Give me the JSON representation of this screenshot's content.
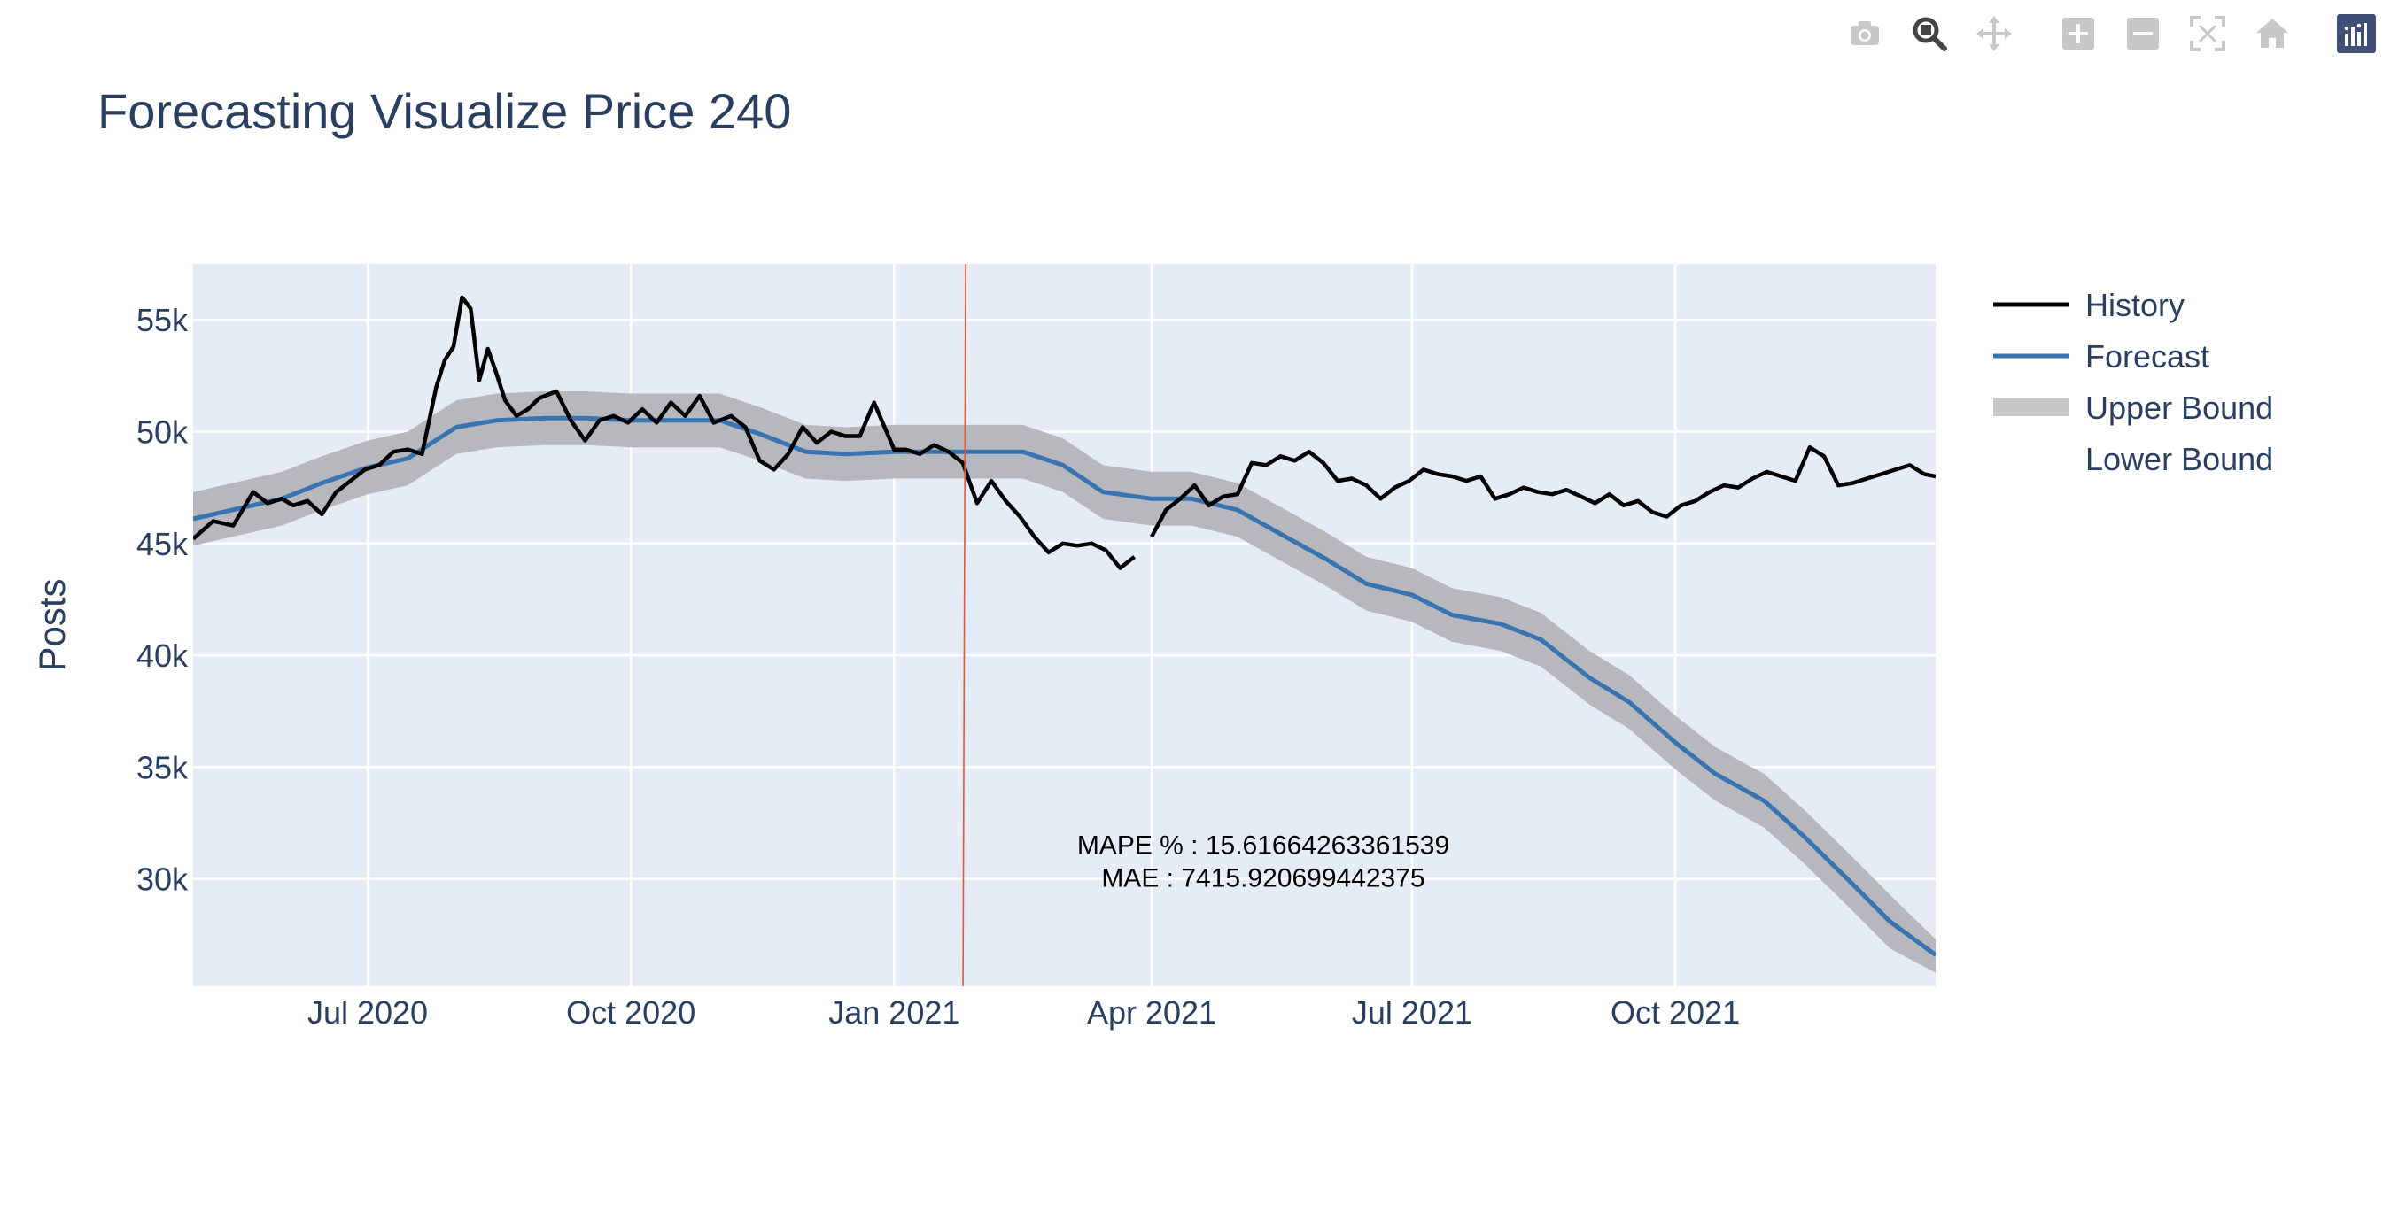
{
  "modebar": {
    "buttons": [
      {
        "name": "camera-icon",
        "label": "Download plot as a png",
        "active": false
      },
      {
        "name": "zoom-icon",
        "label": "Zoom",
        "active": true
      },
      {
        "name": "pan-icon",
        "label": "Pan",
        "active": false
      },
      {
        "name": "zoom-in-icon",
        "label": "Zoom in",
        "active": false
      },
      {
        "name": "zoom-out-icon",
        "label": "Zoom out",
        "active": false
      },
      {
        "name": "autoscale-icon",
        "label": "Autoscale",
        "active": false
      },
      {
        "name": "home-icon",
        "label": "Reset axes",
        "active": false
      },
      {
        "name": "plotly-logo-icon",
        "label": "Produced with Plotly",
        "active": false
      }
    ],
    "colors": {
      "idle": "#c8c8c8",
      "active": "#444444",
      "logo_bg": "#3f4f75"
    }
  },
  "chart_data": {
    "type": "line",
    "title": "Forecasting Visualize Price 240",
    "xlabel": "",
    "ylabel": "Posts",
    "x_range": [
      "2020-05-01",
      "2021-12-31"
    ],
    "ylim": [
      25200,
      57500
    ],
    "x_ticks": [
      {
        "date": "2020-07-01",
        "label": "Jul 2020"
      },
      {
        "date": "2020-10-01",
        "label": "Oct 2020"
      },
      {
        "date": "2021-01-01",
        "label": "Jan 2021"
      },
      {
        "date": "2021-04-01",
        "label": "Apr 2021"
      },
      {
        "date": "2021-07-01",
        "label": "Jul 2021"
      },
      {
        "date": "2021-10-01",
        "label": "Oct 2021"
      }
    ],
    "y_ticks": [
      {
        "value": 30000,
        "label": "30k"
      },
      {
        "value": 35000,
        "label": "35k"
      },
      {
        "value": 40000,
        "label": "40k"
      },
      {
        "value": 45000,
        "label": "45k"
      },
      {
        "value": 50000,
        "label": "50k"
      },
      {
        "value": 55000,
        "label": "55k"
      }
    ],
    "grid": true,
    "legend_position": "right",
    "legend": [
      "History",
      "Forecast",
      "Upper Bound",
      "Lower Bound"
    ],
    "colors": {
      "history": "#000000",
      "forecast": "#3a74b0",
      "band": "#b4b5b9",
      "band_legend": "#c8c8c8",
      "vline": "#e8553a",
      "plot_bg": "#e5ecf6",
      "grid": "#ffffff",
      "text": "#2a3f5f"
    },
    "forecast_start": "2021-01-26",
    "series": [
      {
        "name": "History",
        "dates": [
          "2020-05-01",
          "2020-05-08",
          "2020-05-15",
          "2020-05-22",
          "2020-05-27",
          "2020-06-01",
          "2020-06-05",
          "2020-06-10",
          "2020-06-15",
          "2020-06-20",
          "2020-06-25",
          "2020-06-30",
          "2020-07-05",
          "2020-07-10",
          "2020-07-15",
          "2020-07-20",
          "2020-07-25",
          "2020-07-28",
          "2020-07-31",
          "2020-08-03",
          "2020-08-06",
          "2020-08-09",
          "2020-08-12",
          "2020-08-15",
          "2020-08-18",
          "2020-08-22",
          "2020-08-26",
          "2020-08-30",
          "2020-09-05",
          "2020-09-10",
          "2020-09-15",
          "2020-09-20",
          "2020-09-25",
          "2020-09-30",
          "2020-10-05",
          "2020-10-10",
          "2020-10-15",
          "2020-10-20",
          "2020-10-25",
          "2020-10-30",
          "2020-11-05",
          "2020-11-10",
          "2020-11-15",
          "2020-11-20",
          "2020-11-25",
          "2020-11-30",
          "2020-12-05",
          "2020-12-10",
          "2020-12-15",
          "2020-12-20",
          "2020-12-25",
          "2021-01-01",
          "2021-01-05",
          "2021-01-10",
          "2021-01-15",
          "2021-01-20",
          "2021-01-25",
          "2021-01-30",
          "2021-02-04",
          "2021-02-09",
          "2021-02-14",
          "2021-02-19",
          "2021-02-24",
          "2021-03-01",
          "2021-03-06",
          "2021-03-11",
          "2021-03-16",
          "2021-03-21",
          "2021-03-26",
          null,
          "2021-04-01",
          "2021-04-06",
          "2021-04-11",
          "2021-04-16",
          "2021-04-21",
          "2021-04-26",
          "2021-05-01",
          "2021-05-06",
          "2021-05-11",
          "2021-05-16",
          "2021-05-21",
          "2021-05-26",
          "2021-05-31",
          "2021-06-05",
          "2021-06-10",
          "2021-06-15",
          "2021-06-20",
          "2021-06-25",
          "2021-06-30",
          "2021-07-05",
          "2021-07-10",
          "2021-07-15",
          "2021-07-20",
          "2021-07-25",
          "2021-07-30",
          "2021-08-04",
          "2021-08-09",
          "2021-08-14",
          "2021-08-19",
          "2021-08-24",
          "2021-08-29",
          "2021-09-03",
          "2021-09-08",
          "2021-09-13",
          "2021-09-18",
          "2021-09-23",
          "2021-09-28",
          "2021-10-03",
          "2021-10-08",
          "2021-10-13",
          "2021-10-18",
          "2021-10-23",
          "2021-10-28",
          "2021-11-02",
          "2021-11-07",
          "2021-11-12",
          "2021-11-17",
          "2021-11-22",
          "2021-11-27",
          "2021-12-02",
          "2021-12-07",
          "2021-12-12",
          "2021-12-17",
          "2021-12-22",
          "2021-12-27",
          "2021-12-31"
        ],
        "values": [
          45200,
          46000,
          45800,
          47300,
          46800,
          47000,
          46700,
          46900,
          46300,
          47300,
          47800,
          48300,
          48500,
          49100,
          49200,
          49000,
          52000,
          53200,
          53800,
          56000,
          55500,
          52300,
          53700,
          52600,
          51400,
          50700,
          51000,
          51500,
          51800,
          50500,
          49600,
          50500,
          50700,
          50400,
          51000,
          50400,
          51300,
          50700,
          51600,
          50400,
          50700,
          50200,
          48700,
          48300,
          49000,
          50200,
          49500,
          50000,
          49800,
          49800,
          51300,
          49200,
          49200,
          49000,
          49400,
          49100,
          48600,
          46800,
          47800,
          46900,
          46200,
          45300,
          44600,
          45000,
          44900,
          45000,
          44700,
          43900,
          44400,
          null,
          45300,
          46500,
          47000,
          47600,
          46700,
          47100,
          47200,
          48600,
          48500,
          48900,
          48700,
          49100,
          48600,
          47800,
          47900,
          47600,
          47000,
          47500,
          47800,
          48300,
          48100,
          48000,
          47800,
          48000,
          47000,
          47200,
          47500,
          47300,
          47200,
          47400,
          47100,
          46800,
          47200,
          46700,
          46900,
          46400,
          46200,
          46700,
          46900,
          47300,
          47600,
          47500,
          47900,
          48200,
          48000,
          47800,
          49300,
          48900,
          47600,
          47700,
          47900,
          48100,
          48300,
          48500,
          48100,
          48000
        ]
      },
      {
        "name": "Forecast",
        "dates": [
          "2020-05-01",
          "2020-06-01",
          "2020-06-15",
          "2020-07-01",
          "2020-07-15",
          "2020-08-01",
          "2020-08-15",
          "2020-09-01",
          "2020-09-15",
          "2020-10-01",
          "2020-10-15",
          "2020-11-01",
          "2020-11-15",
          "2020-12-01",
          "2020-12-15",
          "2021-01-01",
          "2021-01-15",
          "2021-02-01",
          "2021-02-15",
          "2021-03-01",
          "2021-03-15",
          "2021-04-01",
          "2021-04-15",
          "2021-05-01",
          "2021-05-15",
          "2021-06-01",
          "2021-06-15",
          "2021-07-01",
          "2021-07-15",
          "2021-08-01",
          "2021-08-15",
          "2021-09-01",
          "2021-09-15",
          "2021-10-01",
          "2021-10-15",
          "2021-11-01",
          "2021-11-15",
          "2021-12-01",
          "2021-12-15",
          "2021-12-31"
        ],
        "values": [
          46100,
          47000,
          47700,
          48400,
          48800,
          50200,
          50500,
          50600,
          50600,
          50500,
          50500,
          50500,
          49900,
          49100,
          49000,
          49100,
          49100,
          49100,
          49100,
          48500,
          47300,
          47000,
          47000,
          46500,
          45500,
          44300,
          43200,
          42700,
          41800,
          41400,
          40700,
          39000,
          37900,
          36100,
          34700,
          33500,
          31900,
          29900,
          28100,
          26600
        ]
      },
      {
        "name": "Upper Bound",
        "dates": [
          "2020-05-01",
          "2020-06-01",
          "2020-06-15",
          "2020-07-01",
          "2020-07-15",
          "2020-08-01",
          "2020-08-15",
          "2020-09-01",
          "2020-09-15",
          "2020-10-01",
          "2020-10-15",
          "2020-11-01",
          "2020-11-15",
          "2020-12-01",
          "2020-12-15",
          "2021-01-01",
          "2021-01-15",
          "2021-02-01",
          "2021-02-15",
          "2021-03-01",
          "2021-03-15",
          "2021-04-01",
          "2021-04-15",
          "2021-05-01",
          "2021-05-15",
          "2021-06-01",
          "2021-06-15",
          "2021-07-01",
          "2021-07-15",
          "2021-08-01",
          "2021-08-15",
          "2021-09-01",
          "2021-09-15",
          "2021-10-01",
          "2021-10-15",
          "2021-11-01",
          "2021-11-15",
          "2021-12-01",
          "2021-12-15",
          "2021-12-31"
        ],
        "values": [
          47300,
          48200,
          48900,
          49600,
          50000,
          51400,
          51700,
          51800,
          51800,
          51700,
          51700,
          51700,
          51100,
          50300,
          50200,
          50300,
          50300,
          50300,
          50300,
          49700,
          48500,
          48200,
          48200,
          47700,
          46700,
          45500,
          44400,
          43900,
          43000,
          42600,
          41900,
          40200,
          39100,
          37300,
          35900,
          34700,
          33100,
          31100,
          29300,
          27300
        ]
      },
      {
        "name": "Lower Bound",
        "dates": [
          "2020-05-01",
          "2020-06-01",
          "2020-06-15",
          "2020-07-01",
          "2020-07-15",
          "2020-08-01",
          "2020-08-15",
          "2020-09-01",
          "2020-09-15",
          "2020-10-01",
          "2020-10-15",
          "2020-11-01",
          "2020-11-15",
          "2020-12-01",
          "2020-12-15",
          "2021-01-01",
          "2021-01-15",
          "2021-02-01",
          "2021-02-15",
          "2021-03-01",
          "2021-03-15",
          "2021-04-01",
          "2021-04-15",
          "2021-05-01",
          "2021-05-15",
          "2021-06-01",
          "2021-06-15",
          "2021-07-01",
          "2021-07-15",
          "2021-08-01",
          "2021-08-15",
          "2021-09-01",
          "2021-09-15",
          "2021-10-01",
          "2021-10-15",
          "2021-11-01",
          "2021-11-15",
          "2021-12-01",
          "2021-12-15",
          "2021-12-31"
        ],
        "values": [
          44900,
          45800,
          46500,
          47200,
          47600,
          49000,
          49300,
          49400,
          49400,
          49300,
          49300,
          49300,
          48700,
          47900,
          47800,
          47900,
          47900,
          47900,
          47900,
          47300,
          46100,
          45800,
          45800,
          45300,
          44300,
          43100,
          42000,
          41500,
          40600,
          40200,
          39500,
          37800,
          36700,
          34900,
          33500,
          32300,
          30700,
          28700,
          26900,
          25800
        ]
      }
    ],
    "annotation": {
      "x": "2021-05-10",
      "y": 30400,
      "lines": [
        "MAPE % :  15.61664263361539",
        "MAE :  7415.920699442375"
      ]
    }
  }
}
